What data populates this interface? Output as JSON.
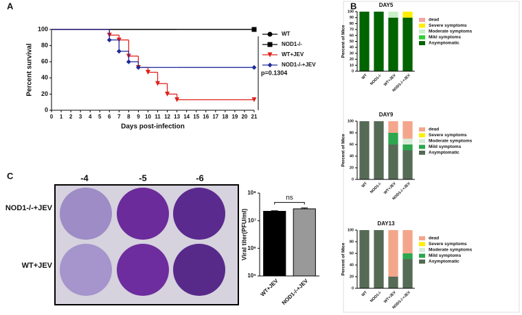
{
  "figure": {
    "panel_labels": [
      "A",
      "B",
      "C"
    ],
    "plate": {
      "dilutions": [
        "-4",
        "-5",
        "-6"
      ],
      "rows": [
        "NOD1-/-+JEV",
        "WT+JEV"
      ]
    }
  },
  "chart_data": [
    {
      "type": "survival",
      "xlabel": "Days post-infection",
      "ylabel": "Percent survival",
      "annotation": "p=0.1304",
      "x": [
        0,
        6,
        7,
        8,
        9,
        10,
        11,
        12,
        13,
        21
      ],
      "xlim": [
        0,
        21
      ],
      "xticks": [
        0,
        1,
        2,
        3,
        4,
        5,
        6,
        7,
        8,
        9,
        10,
        11,
        12,
        13,
        14,
        15,
        16,
        17,
        18,
        19,
        20,
        21
      ],
      "ylim": [
        0,
        100
      ],
      "yticks": [
        0,
        20,
        40,
        60,
        80,
        100
      ],
      "series": [
        {
          "name": "WT",
          "color": "#000000",
          "marker": "circle",
          "values": [
            100,
            100,
            100,
            100,
            100,
            100,
            100,
            100,
            100,
            100
          ]
        },
        {
          "name": "NOD1-/-",
          "color": "#000000",
          "marker": "square",
          "values": [
            100,
            100,
            100,
            100,
            100,
            100,
            100,
            100,
            100,
            100
          ]
        },
        {
          "name": "WT+JEV",
          "color": "#e0201b",
          "marker": "triangle",
          "values": [
            100,
            93,
            87,
            67,
            53,
            47,
            33,
            20,
            13,
            13
          ]
        },
        {
          "name": "NOD1-/-+JEV",
          "color": "#1f2a9c",
          "marker": "diamond",
          "values": [
            100,
            87,
            73,
            60,
            53,
            53,
            53,
            53,
            53,
            53
          ]
        }
      ]
    },
    {
      "type": "stacked_bar",
      "title": "DAY5",
      "ylabel": "Percent of Mice",
      "categories": [
        "WT",
        "NOD1-/-",
        "WT+JEV",
        "NOD1-/-+JEV"
      ],
      "ylim": [
        0,
        100
      ],
      "yticks": [
        0,
        10,
        20,
        30,
        40,
        50,
        60,
        70,
        80,
        90,
        100
      ],
      "series": [
        {
          "name": "Asymptomatic",
          "color": "#006400",
          "values": [
            100,
            100,
            90,
            90
          ]
        },
        {
          "name": "Mikl symptoms",
          "color": "#33cc33",
          "values": [
            0,
            0,
            0,
            0
          ]
        },
        {
          "name": "Moderate symptoms",
          "color": "#c8f0c8",
          "values": [
            0,
            0,
            10,
            0
          ]
        },
        {
          "name": "Severe symptoms",
          "color": "#ffee00",
          "values": [
            0,
            0,
            0,
            10
          ]
        },
        {
          "name": "dead",
          "color": "#f4a6a6",
          "values": [
            0,
            0,
            0,
            0
          ]
        }
      ]
    },
    {
      "type": "stacked_bar",
      "title": "DAY9",
      "ylabel": "Percent of Mice",
      "categories": [
        "WT",
        "NOD1-/-",
        "WT+JEV",
        "NOD1-/-+JEV"
      ],
      "ylim": [
        0,
        100
      ],
      "yticks": [
        0,
        20,
        40,
        60,
        80,
        100
      ],
      "series": [
        {
          "name": "Asymptomatic",
          "color": "#566b56",
          "values": [
            100,
            100,
            60,
            50
          ]
        },
        {
          "name": "Mild symptoms",
          "color": "#2ea64f",
          "values": [
            0,
            0,
            20,
            10
          ]
        },
        {
          "name": "Moderate symptoms",
          "color": "#d8ecd8",
          "values": [
            0,
            0,
            0,
            10
          ]
        },
        {
          "name": "Severe symptoms",
          "color": "#ffee00",
          "values": [
            0,
            0,
            0,
            0
          ]
        },
        {
          "name": "dead",
          "color": "#f4a68c",
          "values": [
            0,
            0,
            20,
            30
          ]
        }
      ]
    },
    {
      "type": "stacked_bar",
      "title": "DAY13",
      "ylabel": "Percent of Mice",
      "categories": [
        "WT",
        "NOD1-/-",
        "WT+JEV",
        "NOD1-/-+JEV"
      ],
      "ylim": [
        0,
        100
      ],
      "yticks": [
        0,
        20,
        40,
        60,
        80,
        100
      ],
      "series": [
        {
          "name": "Asymptomatic",
          "color": "#566b56",
          "values": [
            100,
            100,
            20,
            50
          ]
        },
        {
          "name": "Mild symptoms",
          "color": "#2ea64f",
          "values": [
            0,
            0,
            0,
            10
          ]
        },
        {
          "name": "Moderate symptoms",
          "color": "#d8ecd8",
          "values": [
            0,
            0,
            0,
            0
          ]
        },
        {
          "name": "Severe symptoms",
          "color": "#ffee00",
          "values": [
            0,
            0,
            0,
            0
          ]
        },
        {
          "name": "dead",
          "color": "#f4a68c",
          "values": [
            0,
            0,
            80,
            40
          ]
        }
      ]
    },
    {
      "type": "bar",
      "ylabel": "Viral titer(PFU/ml)",
      "annotation": "ns",
      "log_scale": true,
      "categories": [
        "WT+JEV",
        "NOD1-/-+JEV"
      ],
      "values": [
        22000000,
        27000000
      ],
      "errors": [
        1000000,
        2000000
      ],
      "colors": [
        "#000000",
        "#999999"
      ],
      "ylim": [
        100000,
        100000000
      ],
      "yticks": [
        {
          "value": 100000,
          "label": "10⁵"
        },
        {
          "value": 1000000,
          "label": "10⁶"
        },
        {
          "value": 10000000,
          "label": "10⁷"
        },
        {
          "value": 100000000,
          "label": "10⁸"
        }
      ]
    }
  ]
}
